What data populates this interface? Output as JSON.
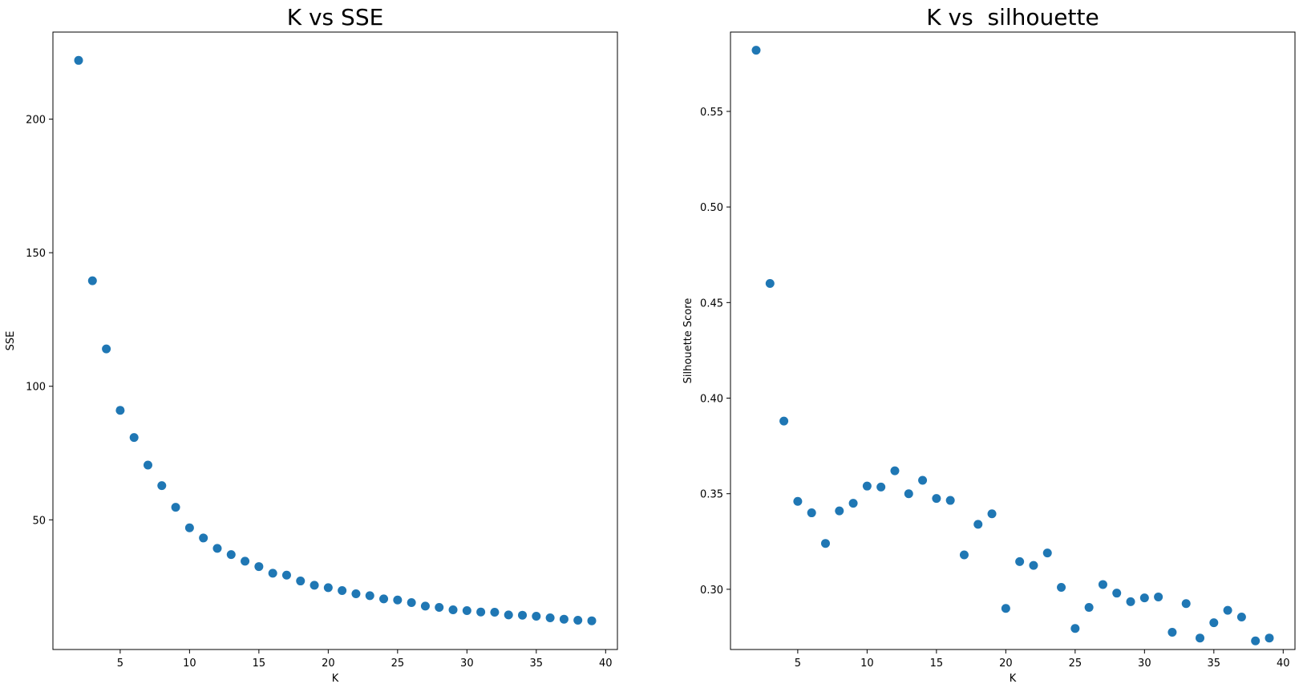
{
  "chart_data": [
    {
      "type": "scatter",
      "title": "K vs SSE",
      "xlabel": "K",
      "ylabel": "SSE",
      "xlim": [
        0.15,
        40.85
      ],
      "ylim": [
        1.45,
        232.6
      ],
      "xticks": [
        5,
        10,
        15,
        20,
        25,
        30,
        35,
        40
      ],
      "yticks": [
        50,
        100,
        150,
        200
      ],
      "grid": false,
      "marker_color": "#1f77b4",
      "series": [
        {
          "x": [
            2,
            3,
            4,
            5,
            6,
            7,
            8,
            9,
            10,
            11,
            12,
            13,
            14,
            15,
            16,
            17,
            18,
            19,
            20,
            21,
            22,
            23,
            24,
            25,
            26,
            27,
            28,
            29,
            30,
            31,
            32,
            33,
            34,
            35,
            36,
            37,
            38,
            39
          ],
          "y": [
            222,
            139.5,
            114,
            91,
            80.8,
            70.5,
            62.8,
            54.7,
            47,
            43.2,
            39.3,
            37,
            34.5,
            32.5,
            30,
            29.3,
            27.1,
            25.5,
            24.6,
            23.5,
            22.3,
            21.6,
            20.4,
            20,
            19,
            17.7,
            17.2,
            16.3,
            16,
            15.5,
            15.4,
            14.4,
            14.3,
            13.9,
            13.3,
            12.8,
            12.4,
            12.2
          ]
        }
      ]
    },
    {
      "type": "scatter",
      "title": "K vs  silhouette",
      "xlabel": "K",
      "ylabel": "Silhouette Score",
      "xlim": [
        0.15,
        40.85
      ],
      "ylim": [
        0.2685,
        0.5915
      ],
      "xticks": [
        5,
        10,
        15,
        20,
        25,
        30,
        35,
        40
      ],
      "yticks": [
        0.3,
        0.35,
        0.4,
        0.45,
        0.5,
        0.55
      ],
      "grid": false,
      "marker_color": "#1f77b4",
      "series": [
        {
          "x": [
            2,
            3,
            4,
            5,
            6,
            7,
            8,
            9,
            10,
            11,
            12,
            13,
            14,
            15,
            16,
            17,
            18,
            19,
            20,
            21,
            22,
            23,
            24,
            25,
            26,
            27,
            28,
            29,
            30,
            31,
            32,
            33,
            34,
            35,
            36,
            37,
            38,
            39
          ],
          "y": [
            0.582,
            0.46,
            0.388,
            0.346,
            0.34,
            0.324,
            0.341,
            0.345,
            0.354,
            0.3535,
            0.362,
            0.35,
            0.357,
            0.3475,
            0.3465,
            0.318,
            0.334,
            0.3395,
            0.29,
            0.3145,
            0.3125,
            0.319,
            0.301,
            0.2795,
            0.2905,
            0.3025,
            0.298,
            0.2935,
            0.2955,
            0.296,
            0.2775,
            0.2925,
            0.2745,
            0.2825,
            0.289,
            0.2855,
            0.273,
            0.2745
          ]
        }
      ]
    }
  ]
}
